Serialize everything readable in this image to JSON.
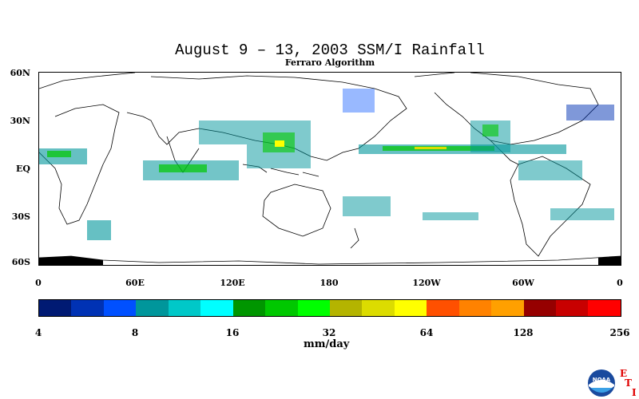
{
  "header": {
    "title": "August 9 – 13, 2003 SSM/I Rainfall",
    "subtitle": "Ferraro Algorithm"
  },
  "map": {
    "lat_labels": [
      "60N",
      "30N",
      "EQ",
      "30S",
      "60S"
    ],
    "lon_labels": [
      "0",
      "60E",
      "120E",
      "180",
      "120W",
      "60W",
      "0"
    ],
    "lat_range": [
      -60,
      60
    ],
    "lon_range": [
      0,
      360
    ]
  },
  "colorbar": {
    "colors": [
      "#001a73",
      "#0032b4",
      "#0050ff",
      "#00969b",
      "#00c8c8",
      "#00ffff",
      "#009600",
      "#00c800",
      "#00ff00",
      "#b4b400",
      "#dcdc00",
      "#ffff00",
      "#ff5000",
      "#ff8200",
      "#ffa000",
      "#960000",
      "#c80000",
      "#ff0000"
    ],
    "tick_labels": [
      "4",
      "8",
      "16",
      "32",
      "64",
      "128",
      "256"
    ],
    "units": "mm/day"
  },
  "logos": {
    "noaa_text": "NOAA",
    "eti_e": "E",
    "eti_t": "T",
    "eti_i": "I"
  }
}
